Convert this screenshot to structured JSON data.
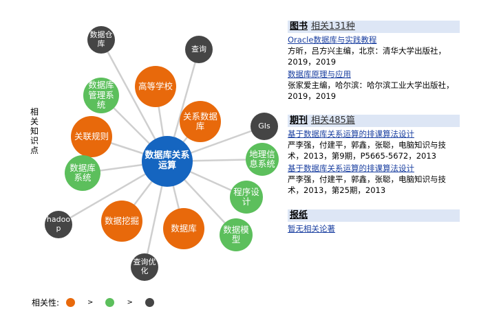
{
  "side_label": "相关知识点",
  "colors": {
    "high": "#e8690b",
    "mid": "#5cbf5c",
    "low": "#454545",
    "center": "#1565c0",
    "line": "#cfcfcf"
  },
  "graph": {
    "center": "数据库关系运算",
    "nodes": [
      {
        "label": "数据仓库",
        "level": "low"
      },
      {
        "label": "查询",
        "level": "low"
      },
      {
        "label": "高等学校",
        "level": "high"
      },
      {
        "label": "数据库管理系统",
        "level": "mid"
      },
      {
        "label": "关系数据库",
        "level": "high"
      },
      {
        "label": "GIs",
        "level": "low"
      },
      {
        "label": "关联规则",
        "level": "high"
      },
      {
        "label": "地理信息系统",
        "level": "mid"
      },
      {
        "label": "数据库系统",
        "level": "mid"
      },
      {
        "label": "程序设计",
        "level": "mid"
      },
      {
        "label": "hadoop",
        "level": "low"
      },
      {
        "label": "数据挖掘",
        "level": "high"
      },
      {
        "label": "数据库",
        "level": "high"
      },
      {
        "label": "数据模型",
        "level": "mid"
      },
      {
        "label": "查询优化",
        "level": "low"
      }
    ]
  },
  "legend": {
    "label": "相关性:",
    "gt": ">"
  },
  "books": {
    "title": "图书",
    "count": "相关131种",
    "items": [
      {
        "title": "Oracle数据库与实践教程",
        "meta": "方昕，吕方兴主编，北京：清华大学出版社，2019，2019"
      },
      {
        "title": "数据库原理与应用",
        "meta": "张家爱主编，哈尔滨：哈尔滨工业大学出版社，2019，2019"
      }
    ]
  },
  "journals": {
    "title": "期刊",
    "count": "相关485篇",
    "items": [
      {
        "title": "基于数据库关系运算的排课算法设计",
        "meta": "严李强，付建平，郭鑫，张聪，电脑知识与技术，2013，第9期，P5665-5672，2013"
      },
      {
        "title": "基于数据库关系运算的排课算法设计",
        "meta": "严李强，付建平，郭鑫，张聪，电脑知识与技术，2013，第25期，2013"
      }
    ]
  },
  "newspapers": {
    "title": "报纸",
    "empty": "暂无相关论著"
  }
}
